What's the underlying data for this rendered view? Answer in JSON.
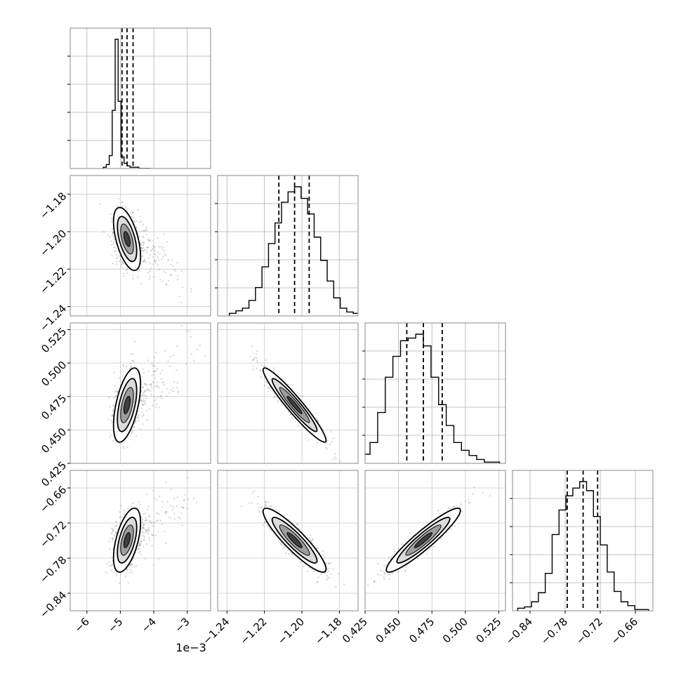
{
  "chart_data": {
    "type": "corner",
    "parameters": 4,
    "offset_text": "1e−3",
    "axes": [
      {
        "index": 0,
        "range": [
          -6.5,
          -2.3
        ],
        "ticks": [
          -6,
          -5,
          -4,
          -3
        ],
        "tick_labels": [
          "−6",
          "−5",
          "−4",
          "−3"
        ]
      },
      {
        "index": 1,
        "range": [
          -1.245,
          -1.17
        ],
        "ticks": [
          -1.24,
          -1.22,
          -1.2,
          -1.18
        ],
        "tick_labels": [
          "−1.24",
          "−1.22",
          "−1.20",
          "−1.18"
        ]
      },
      {
        "index": 2,
        "range": [
          0.425,
          0.53
        ],
        "ticks": [
          0.425,
          0.45,
          0.475,
          0.5,
          0.525
        ],
        "tick_labels": [
          "0.425",
          "0.450",
          "0.475",
          "0.500",
          "0.525"
        ]
      },
      {
        "index": 3,
        "range": [
          -0.87,
          -0.63
        ],
        "ticks": [
          -0.84,
          -0.78,
          -0.72,
          -0.66
        ],
        "tick_labels": [
          "−0.84",
          "−0.78",
          "−0.72",
          "−0.66"
        ]
      }
    ],
    "quantiles": [
      {
        "index": 0,
        "values": [
          -4.95,
          -4.8,
          -4.62
        ]
      },
      {
        "index": 1,
        "values": [
          -1.2123,
          -1.2039,
          -1.1961
        ]
      },
      {
        "index": 2,
        "values": [
          0.4562,
          0.4686,
          0.4827
        ]
      },
      {
        "index": 3,
        "values": [
          -0.7765,
          -0.7493,
          -0.7245
        ]
      }
    ],
    "histograms": [
      {
        "index": 0,
        "values": [
          1,
          3,
          10,
          45,
          100,
          52,
          9,
          4,
          2,
          1,
          1,
          1,
          0,
          0,
          0,
          0
        ]
      },
      {
        "index": 1,
        "values": [
          2,
          4,
          6,
          12,
          22,
          38,
          56,
          72,
          88,
          96,
          100,
          91,
          79,
          61,
          43,
          27,
          14,
          6,
          3,
          2
        ]
      },
      {
        "index": 2,
        "values": [
          2,
          4,
          7,
          16,
          39,
          66,
          82,
          94,
          96,
          99,
          90,
          66,
          45,
          29,
          16,
          10,
          6,
          3,
          1,
          1
        ]
      },
      {
        "index": 3,
        "values": [
          2,
          3,
          7,
          14,
          29,
          59,
          78,
          89,
          95,
          100,
          93,
          73,
          51,
          30,
          15,
          7,
          4,
          1,
          1
        ]
      }
    ],
    "correlations": [
      {
        "x": 0,
        "y": 1,
        "mean": [
          -4.8,
          -1.2039
        ],
        "sd": [
          0.35,
          0.008
        ],
        "rho": -0.55
      },
      {
        "x": 0,
        "y": 2,
        "mean": [
          -4.8,
          0.4686
        ],
        "sd": [
          0.35,
          0.0132
        ],
        "rho": 0.55
      },
      {
        "x": 0,
        "y": 3,
        "mean": [
          -4.8,
          -0.7493
        ],
        "sd": [
          0.35,
          0.026
        ],
        "rho": 0.55
      },
      {
        "x": 1,
        "y": 2,
        "mean": [
          -1.2039,
          0.4686
        ],
        "sd": [
          0.008,
          0.0132
        ],
        "rho": -0.95
      },
      {
        "x": 1,
        "y": 3,
        "mean": [
          -1.2039,
          -0.7493
        ],
        "sd": [
          0.008,
          0.026
        ],
        "rho": -0.9
      },
      {
        "x": 2,
        "y": 3,
        "mean": [
          0.4686,
          -0.7493
        ],
        "sd": [
          0.0132,
          0.026
        ],
        "rho": 0.93
      }
    ],
    "grid": true,
    "colors": {
      "points": "#555555",
      "contour_line": "#000000",
      "fill_dark": "#000000",
      "fill_light": "#ffffff",
      "frame": "#888888"
    }
  }
}
